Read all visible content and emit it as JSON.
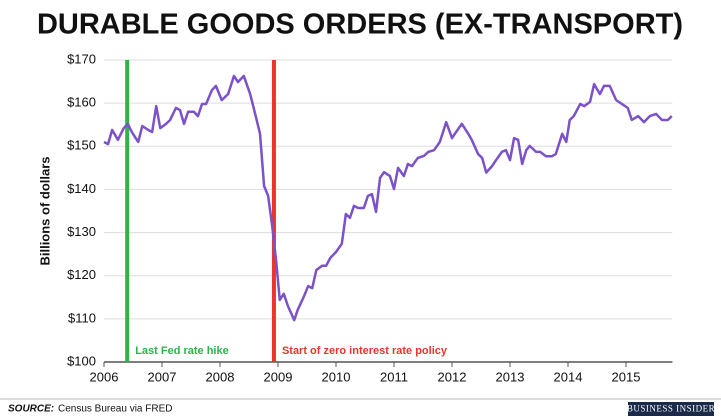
{
  "chart_data": {
    "type": "line",
    "title": "DURABLE GOODS ORDERS (EX-TRANSPORT)",
    "ylabel": "Billions of dollars",
    "source_label": "SOURCE:",
    "source": "Census Bureau via FRED",
    "brand": "BUSINESS INSIDER",
    "grid": true,
    "xlim": [
      2006,
      2015.8
    ],
    "xticks": [
      2006,
      2007,
      2008,
      2009,
      2010,
      2011,
      2012,
      2013,
      2014,
      2015
    ],
    "ylim": [
      100,
      170
    ],
    "yticks": [
      {
        "value": 100,
        "label": "$100"
      },
      {
        "value": 110,
        "label": "$110"
      },
      {
        "value": 120,
        "label": "$120"
      },
      {
        "value": 130,
        "label": "$130"
      },
      {
        "value": 140,
        "label": "$140"
      },
      {
        "value": 150,
        "label": "$150"
      },
      {
        "value": 160,
        "label": "$160"
      },
      {
        "value": 170,
        "label": "$170"
      }
    ],
    "annotations": [
      {
        "x": 2006.4,
        "label": "Last Fed rate hike",
        "color": "#2db34a"
      },
      {
        "x": 2008.93,
        "label": "Start of zero interest rate policy",
        "color": "#e8352e"
      }
    ],
    "x": [
      2006.0,
      2006.07,
      2006.14,
      2006.24,
      2006.34,
      2006.41,
      2006.48,
      2006.59,
      2006.66,
      2006.76,
      2006.83,
      2006.9,
      2006.97,
      2007.07,
      2007.14,
      2007.24,
      2007.31,
      2007.38,
      2007.45,
      2007.55,
      2007.62,
      2007.69,
      2007.76,
      2007.86,
      2007.93,
      2008.03,
      2008.14,
      2008.24,
      2008.31,
      2008.41,
      2008.52,
      2008.59,
      2008.69,
      2008.76,
      2008.83,
      2008.9,
      2008.97,
      2009.03,
      2009.1,
      2009.17,
      2009.28,
      2009.34,
      2009.45,
      2009.52,
      2009.59,
      2009.66,
      2009.76,
      2009.83,
      2009.9,
      2010.0,
      2010.1,
      2010.17,
      2010.24,
      2010.31,
      2010.38,
      2010.48,
      2010.55,
      2010.62,
      2010.69,
      2010.76,
      2010.83,
      2010.93,
      2011.0,
      2011.07,
      2011.17,
      2011.24,
      2011.31,
      2011.41,
      2011.52,
      2011.59,
      2011.69,
      2011.79,
      2011.9,
      2012.0,
      2012.07,
      2012.17,
      2012.28,
      2012.34,
      2012.45,
      2012.52,
      2012.59,
      2012.69,
      2012.76,
      2012.86,
      2012.93,
      2013.0,
      2013.07,
      2013.14,
      2013.21,
      2013.28,
      2013.34,
      2013.45,
      2013.52,
      2013.62,
      2013.72,
      2013.79,
      2013.9,
      2013.97,
      2014.03,
      2014.1,
      2014.21,
      2014.28,
      2014.38,
      2014.45,
      2014.55,
      2014.62,
      2014.72,
      2014.83,
      2014.93,
      2015.03,
      2015.1,
      2015.21,
      2015.31,
      2015.41,
      2015.52,
      2015.62,
      2015.72,
      2015.79
    ],
    "series": [
      {
        "name": "Durable goods orders ex-transport",
        "color": "#7b52c9",
        "values": [
          151.0,
          150.5,
          153.8,
          151.5,
          154.2,
          155.2,
          153.3,
          151.0,
          154.7,
          153.8,
          153.3,
          159.3,
          154.2,
          155.2,
          156.1,
          158.9,
          158.4,
          155.2,
          158.0,
          158.0,
          157.0,
          159.8,
          159.8,
          163.0,
          164.0,
          160.7,
          162.1,
          166.3,
          164.9,
          166.3,
          162.1,
          158.4,
          152.9,
          140.8,
          138.5,
          131.5,
          123.2,
          114.4,
          115.8,
          113.0,
          109.7,
          112.1,
          115.3,
          117.6,
          117.1,
          121.3,
          122.3,
          122.3,
          124.1,
          125.5,
          127.4,
          134.3,
          133.4,
          136.2,
          135.7,
          135.7,
          138.5,
          138.9,
          134.8,
          142.7,
          144.0,
          143.1,
          140.1,
          145.0,
          143.1,
          145.9,
          145.4,
          147.3,
          147.8,
          148.7,
          149.1,
          151.0,
          155.6,
          151.9,
          153.3,
          155.2,
          152.9,
          151.5,
          148.2,
          147.3,
          143.9,
          145.4,
          146.8,
          148.7,
          149.1,
          146.8,
          151.9,
          151.5,
          145.9,
          149.1,
          150.1,
          148.7,
          148.7,
          147.7,
          147.7,
          148.2,
          152.9,
          151.0,
          156.1,
          157.0,
          159.8,
          159.3,
          160.3,
          164.4,
          162.1,
          164.0,
          164.0,
          160.7,
          159.8,
          158.9,
          156.1,
          157.0,
          155.6,
          157.0,
          157.5,
          156.1,
          156.1,
          157.0
        ]
      }
    ]
  }
}
